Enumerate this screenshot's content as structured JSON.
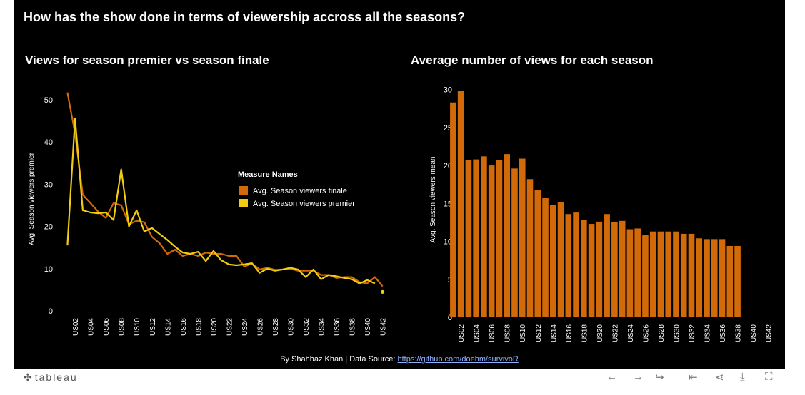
{
  "main_title": "How has the show done in terms of viewership accross all the seasons?",
  "credit": {
    "prefix": "By Shahbaz Khan | Data Source: ",
    "link": "https://github.com/doehm/survivoR"
  },
  "colors": {
    "finale": "#d36a09",
    "premier": "#f2cc0f",
    "bar": "#d36a09",
    "background": "#000000",
    "text": "#ffffff"
  },
  "toolbar": {
    "logo": "tableau",
    "icons": [
      "undo-icon",
      "redo-icon",
      "revert-icon",
      "reset-icon",
      "share-icon",
      "download-icon",
      "fullscreen-icon"
    ]
  },
  "chart_data": [
    {
      "type": "line",
      "title": "Views for season premier vs season finale",
      "ylabel": "Avg. Season viewers premier",
      "xlabel": "",
      "ylim": [
        0,
        53
      ],
      "yticks": [
        0,
        10,
        20,
        30,
        40,
        50
      ],
      "x": [
        "US01",
        "US02",
        "US03",
        "US04",
        "US05",
        "US06",
        "US07",
        "US08",
        "US09",
        "US10",
        "US11",
        "US12",
        "US13",
        "US14",
        "US15",
        "US16",
        "US17",
        "US18",
        "US19",
        "US20",
        "US21",
        "US22",
        "US23",
        "US24",
        "US25",
        "US26",
        "US27",
        "US28",
        "US29",
        "US30",
        "US31",
        "US32",
        "US33",
        "US34",
        "US35",
        "US36",
        "US37",
        "US38",
        "US39",
        "US40",
        "US41",
        "US42"
      ],
      "xtick_labels": [
        "US02",
        "US04",
        "US06",
        "US08",
        "US10",
        "US12",
        "US14",
        "US16",
        "US18",
        "US20",
        "US22",
        "US24",
        "US26",
        "US28",
        "US30",
        "US32",
        "US34",
        "US36",
        "US38",
        "US40",
        "US42"
      ],
      "legend": {
        "title": "Measure Names",
        "position": "right",
        "entries": [
          "Avg. Season viewers finale",
          "Avg. Season viewers premier"
        ]
      },
      "series": [
        {
          "name": "Avg. Season viewers finale",
          "values": [
            51.7,
            42.0,
            27.5,
            25.5,
            23.5,
            22.0,
            25.5,
            25.0,
            20.5,
            21.3,
            21.0,
            17.5,
            16.0,
            13.5,
            14.5,
            13.0,
            13.5,
            13.0,
            13.8,
            13.5,
            13.5,
            13.0,
            13.0,
            10.5,
            11.2,
            9.8,
            10.2,
            9.7,
            9.8,
            10.0,
            9.5,
            9.5,
            9.5,
            8.5,
            8.5,
            7.8,
            8.0,
            8.0,
            6.8,
            6.5,
            8.0,
            5.8
          ]
        },
        {
          "name": "Avg. Season viewers premier",
          "values": [
            15.5,
            45.5,
            23.8,
            23.3,
            23.1,
            23.3,
            21.5,
            33.5,
            20.0,
            23.8,
            18.8,
            19.6,
            18.2,
            16.8,
            15.2,
            13.8,
            13.5,
            14.0,
            11.8,
            14.2,
            12.0,
            11.0,
            10.8,
            11.0,
            11.3,
            9.0,
            10.0,
            9.5,
            9.8,
            10.2,
            9.8,
            8.0,
            9.8,
            7.5,
            8.5,
            8.2,
            7.8,
            7.5,
            6.5,
            7.3,
            6.5,
            null
          ]
        },
        {
          "name": "Avg. Season viewers premier (US42 point)",
          "x": "US42",
          "value": 4.5
        }
      ]
    },
    {
      "type": "bar",
      "title": "Average number of views for each season",
      "ylabel": "Avg. Season viewers mean",
      "xlabel": "",
      "ylim": [
        0,
        31
      ],
      "yticks": [
        0,
        5,
        10,
        15,
        20,
        25,
        30
      ],
      "categories": [
        "US01",
        "US02",
        "US03",
        "US04",
        "US05",
        "US06",
        "US07",
        "US08",
        "US09",
        "US10",
        "US11",
        "US12",
        "US13",
        "US14",
        "US15",
        "US16",
        "US17",
        "US18",
        "US19",
        "US20",
        "US21",
        "US22",
        "US23",
        "US24",
        "US25",
        "US26",
        "US27",
        "US28",
        "US29",
        "US30",
        "US31",
        "US32",
        "US33",
        "US34",
        "US35",
        "US36",
        "US37",
        "US38",
        "US39",
        "US40",
        "US41",
        "US42"
      ],
      "xtick_labels": [
        "US02",
        "US04",
        "US06",
        "US08",
        "US10",
        "US12",
        "US14",
        "US16",
        "US18",
        "US20",
        "US22",
        "US24",
        "US26",
        "US28",
        "US30",
        "US32",
        "US34",
        "US36",
        "US38",
        "US40",
        "US42"
      ],
      "values": [
        28.3,
        29.8,
        20.7,
        20.8,
        21.2,
        20.0,
        20.7,
        21.5,
        19.6,
        20.9,
        18.2,
        16.8,
        15.7,
        14.8,
        15.2,
        13.6,
        13.8,
        12.8,
        12.3,
        12.6,
        13.6,
        12.5,
        12.7,
        11.6,
        11.7,
        10.8,
        11.3,
        11.3,
        11.3,
        11.3,
        11.0,
        11.0,
        10.4,
        10.3,
        10.3,
        10.3,
        9.4,
        9.4,
        null,
        null,
        null,
        null
      ]
    }
  ]
}
